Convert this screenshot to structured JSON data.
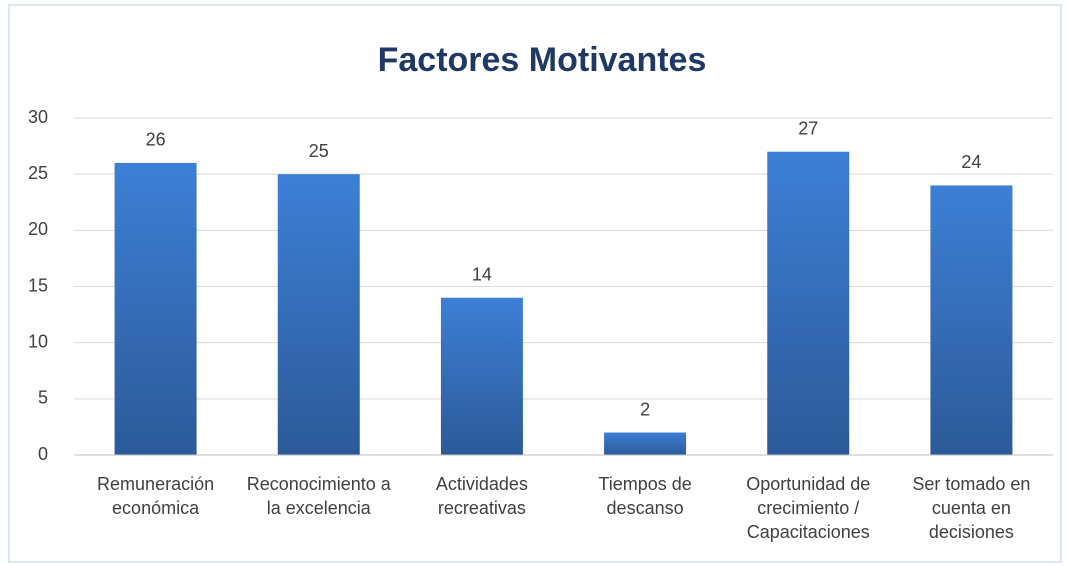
{
  "chart_data": {
    "type": "bar",
    "title": "Factores Motivantes",
    "categories": [
      "Remuneración económica",
      "Reconocimiento a la excelencia",
      "Actividades recreativas",
      "Tiempos de descanso",
      "Oportunidad de crecimiento / Capacitaciones",
      "Ser tomado en cuenta en decisiones"
    ],
    "values": [
      26,
      25,
      14,
      2,
      27,
      24
    ],
    "color": "#3a78c9",
    "ylim": [
      0,
      30
    ],
    "yticks": [
      0,
      5,
      10,
      15,
      20,
      25,
      30
    ],
    "grid": true
  }
}
